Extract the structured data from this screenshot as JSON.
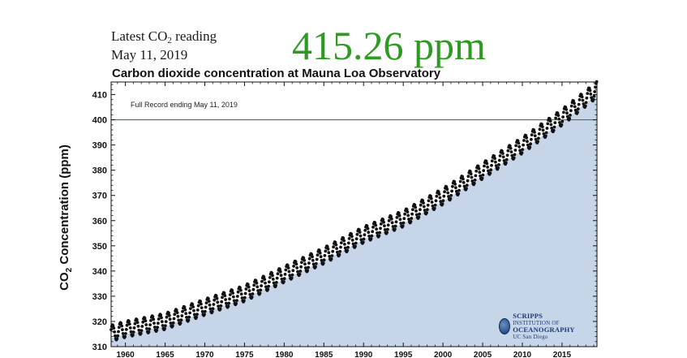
{
  "header": {
    "latest_label_pre": "Latest CO",
    "latest_label_sub": "2",
    "latest_label_post": " reading",
    "date": "May 11, 2019",
    "value": "415.26 ppm",
    "value_color": "#2e9a22"
  },
  "logo": {
    "line1": "SCRIPPS",
    "line1_small": "INSTITUTION OF",
    "line2": "OCEANOGRAPHY",
    "line2_small": "UC San Diego"
  },
  "chart_data": {
    "type": "scatter",
    "title": "Carbon dioxide concentration at Mauna Loa Observatory",
    "ylabel_pre": "CO",
    "ylabel_sub": "2",
    "ylabel_post": " Concentration (ppm)",
    "annotation": "Full Record ending May 11, 2019",
    "xlim": [
      1958.2,
      2019.4
    ],
    "ylim": [
      310,
      415
    ],
    "x_ticks": [
      1960,
      1965,
      1970,
      1975,
      1980,
      1985,
      1990,
      1995,
      2000,
      2005,
      2010,
      2015
    ],
    "y_ticks": [
      310,
      320,
      330,
      340,
      350,
      360,
      370,
      380,
      390,
      400,
      410
    ],
    "reference_line": {
      "y": 400,
      "color": "#2a8a2a"
    },
    "fill_color": "#c6d5e8",
    "series": [
      {
        "type": "monthly_points",
        "color": "#111111",
        "trend_x": [
          1958.2,
          1960,
          1965,
          1970,
          1975,
          1980,
          1985,
          1990,
          1995,
          2000,
          2005,
          2010,
          2015,
          2019.4
        ],
        "trend_y": [
          315.3,
          316.9,
          320.0,
          325.7,
          331.1,
          338.7,
          346.1,
          354.4,
          360.8,
          369.6,
          379.8,
          389.9,
          401.0,
          412.0
        ],
        "seasonal_amplitude": 3.2
      }
    ],
    "grid": false,
    "legend": "none"
  }
}
